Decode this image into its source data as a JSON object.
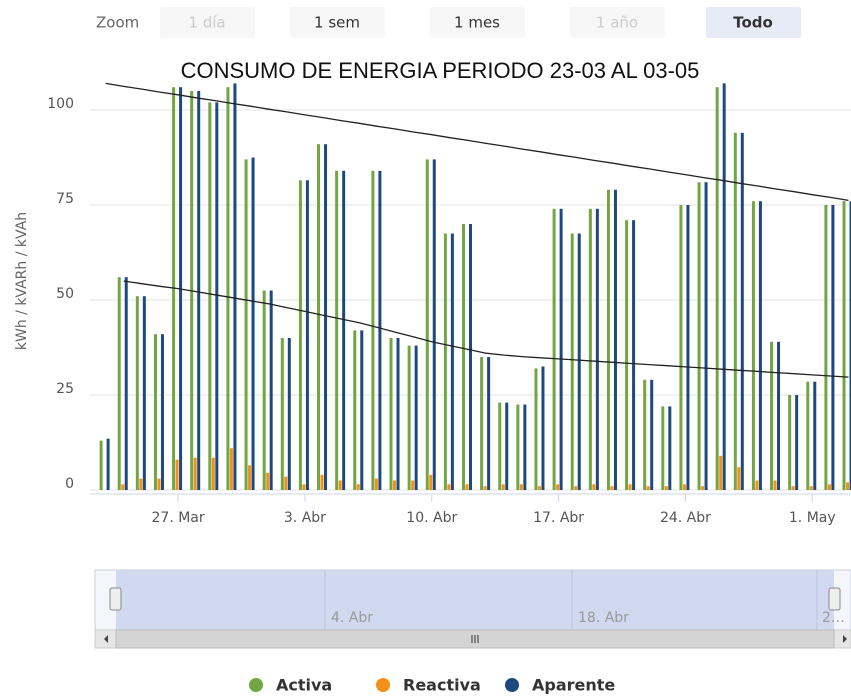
{
  "chart_data": {
    "type": "bar",
    "title": "CONSUMO DE ENERGIA PERIODO 23-03 AL 03-05",
    "y_axis_label": "kWh / kVARh / kVAh",
    "zoom": {
      "label": "Zoom",
      "buttons": [
        "1 día",
        "1 sem",
        "1 mes",
        "1 año",
        "Todo"
      ],
      "selected_button": 4,
      "disabled_buttons": [
        0,
        3
      ]
    },
    "categories": [
      null,
      null,
      null,
      null,
      "27. Mar",
      null,
      null,
      null,
      null,
      null,
      null,
      "3. Abr",
      null,
      null,
      null,
      null,
      null,
      null,
      "10. Abr",
      null,
      null,
      null,
      null,
      null,
      null,
      "17. Abr",
      null,
      null,
      null,
      null,
      null,
      null,
      "24. Abr",
      null,
      null,
      null,
      null,
      null,
      null,
      "1. May",
      null,
      null
    ],
    "series": [
      {
        "name": "Activa",
        "color": "#72a544",
        "values": [
          13,
          56,
          51,
          41,
          106,
          105,
          102,
          106,
          87,
          52.5,
          40,
          81.5,
          91,
          84,
          42,
          84,
          40,
          38,
          87,
          67.5,
          70,
          35,
          23,
          22.5,
          32,
          74,
          67.5,
          74,
          79,
          71,
          29,
          22,
          75,
          81,
          106,
          94,
          76,
          39,
          25,
          28.5,
          75,
          76
        ]
      },
      {
        "name": "Reactiva",
        "color": "#f39019",
        "values": [
          0,
          1.5,
          3,
          3,
          8,
          8.5,
          8.5,
          11,
          6.5,
          4.5,
          3.5,
          1.5,
          4,
          2.5,
          1.5,
          3,
          2.5,
          2.5,
          4,
          1.5,
          1.5,
          1,
          1.5,
          1.5,
          1,
          1.5,
          1,
          1.5,
          1,
          1.5,
          1,
          1,
          1.5,
          1,
          9,
          6,
          2.5,
          2.5,
          1,
          1,
          1.5,
          2
        ]
      },
      {
        "name": "Aparente",
        "color": "#1c4a80",
        "values": [
          13.5,
          56,
          51,
          41,
          106,
          105,
          102,
          107,
          87.5,
          52.5,
          40,
          81.5,
          91,
          84,
          42,
          84,
          40,
          38,
          87,
          67.5,
          70,
          35,
          23,
          22.5,
          32.5,
          74,
          67.5,
          74,
          79,
          71,
          29,
          22,
          75,
          81,
          107,
          94,
          76,
          39,
          25,
          28.5,
          75,
          76
        ]
      }
    ],
    "trend_lines": [
      {
        "color": "#222222",
        "values": [
          107,
          106.2,
          105.5,
          104.7,
          104,
          103.2,
          102.5,
          101.7,
          101,
          100.2,
          99.5,
          98.7,
          98,
          97.2,
          96.5,
          95.7,
          95,
          94.2,
          93.5,
          92.7,
          92,
          91.2,
          90.5,
          89.7,
          89,
          88.2,
          87.5,
          86.7,
          86,
          85.2,
          84.5,
          83.7,
          83,
          82.2,
          81.5,
          80.7,
          80,
          79.2,
          78.5,
          77.7,
          77,
          76.2
        ]
      },
      {
        "color": "#222222",
        "values": [
          null,
          55,
          54.3,
          53.6,
          53,
          52.2,
          51.4,
          50.6,
          49.8,
          49,
          48,
          47,
          46,
          45,
          44,
          42.8,
          41.5,
          40.3,
          39,
          38,
          37,
          36,
          35.5,
          35.1,
          34.8,
          34.5,
          34.2,
          33.9,
          33.6,
          33.3,
          33,
          32.7,
          32.4,
          32.1,
          31.8,
          31.5,
          31.2,
          30.9,
          30.6,
          30.3,
          30,
          29.7
        ]
      }
    ],
    "ylim": [
      0,
      110
    ],
    "yticks": [
      0,
      25,
      50,
      75,
      100
    ],
    "grid": true,
    "legend": "bottom",
    "navigator": {
      "labels": [
        "4. Abr",
        "18. Abr",
        "2…"
      ]
    }
  }
}
